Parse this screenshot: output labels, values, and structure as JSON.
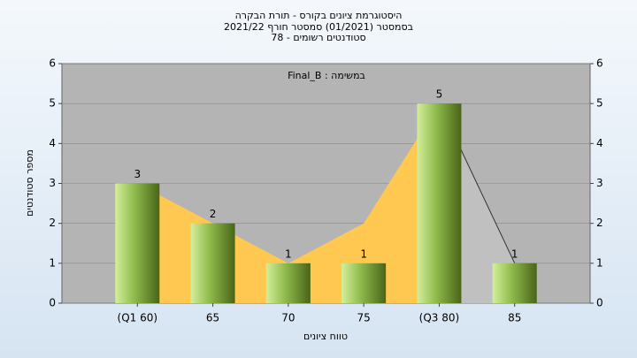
{
  "chart_data": {
    "type": "bar",
    "title": "היסטוגרמת ציונים בקורס - תורת הבקרה",
    "subtitle": [
      "בסמסטר  (01/2021)  סמסטר חורף 2021/22",
      "סטודנטים רשומים - 78"
    ],
    "annotation": "Final_B : במשימה",
    "x_label": "טווח ציונים",
    "y_label": "מספר סטודנטים",
    "categories": [
      "(Q1 60)",
      "65",
      "70",
      "75",
      "(Q3 80)",
      "85"
    ],
    "values": [
      3,
      2,
      1,
      1,
      5,
      1
    ],
    "bar_colors": [
      "#d4ef9a",
      "#8cb84a",
      "#4a6418"
    ],
    "area": {
      "values": [
        3,
        2,
        1,
        2,
        5,
        1
      ],
      "segment_colors": [
        "#ffc850",
        "#ffc850",
        "#ffc850",
        "#ffc850",
        "#c0c0c0"
      ]
    },
    "ylim": [
      0,
      6
    ],
    "yticks": [
      0,
      1,
      2,
      3,
      4,
      5,
      6
    ],
    "y2lim": [
      0,
      6
    ],
    "y2ticks": [
      0,
      1,
      2,
      3,
      4,
      5,
      6
    ],
    "grid": true
  }
}
